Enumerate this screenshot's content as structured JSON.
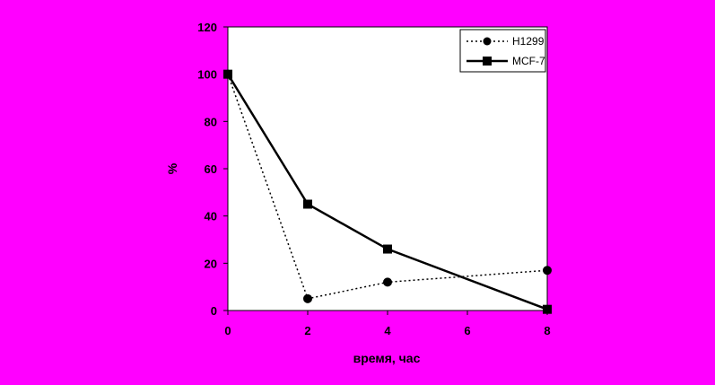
{
  "chart_data": {
    "type": "line",
    "xlabel": "время, час",
    "ylabel": "%",
    "x": [
      0,
      2,
      4,
      8
    ],
    "xticks": [
      0,
      2,
      4,
      6,
      8
    ],
    "xlim": [
      0,
      8
    ],
    "yticks": [
      0,
      20,
      40,
      60,
      80,
      100,
      120
    ],
    "ylim": [
      0,
      120
    ],
    "grid": false,
    "legend_position": "top-right",
    "series": [
      {
        "name": "H1299",
        "values": [
          100,
          5,
          12,
          17
        ],
        "style": "dotted",
        "marker": "circle",
        "color": "#000000"
      },
      {
        "name": "MCF-7",
        "values": [
          100,
          45,
          26,
          0.5
        ],
        "style": "solid",
        "marker": "square",
        "color": "#000000"
      }
    ]
  },
  "colors": {
    "background": "#FF00FF",
    "plot_area": "#FFFFFF",
    "series": "#000000"
  }
}
